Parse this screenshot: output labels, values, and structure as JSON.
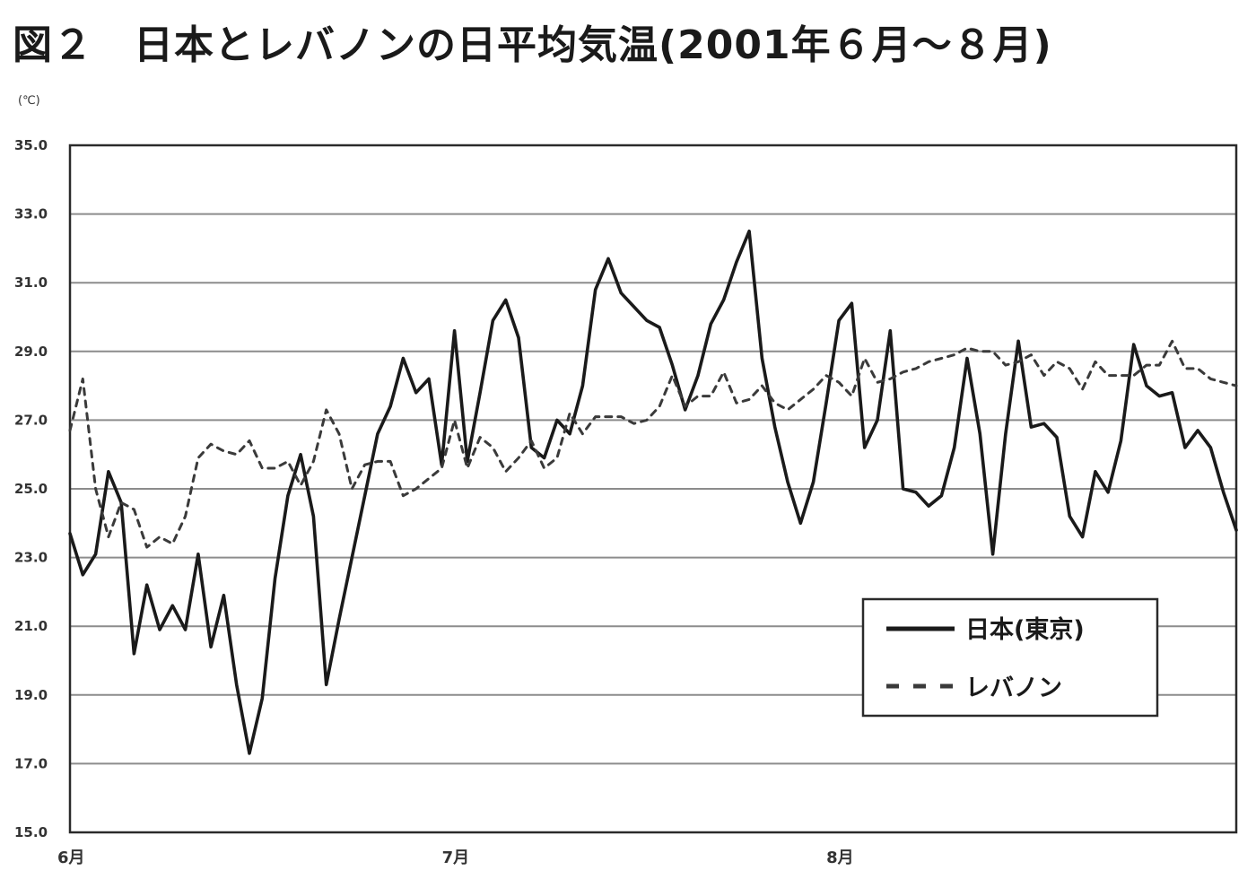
{
  "title": "図２　日本とレバノンの日平均気温(2001年６月～８月)",
  "chart_data": {
    "type": "line",
    "title": "図２　日本とレバノンの日平均気温(2001年６月～８月)",
    "ylabel": "(℃)",
    "xlabel": "",
    "ylim": [
      15.0,
      35.0
    ],
    "xlim": [
      1,
      92
    ],
    "yticks": [
      "15.0",
      "17.0",
      "19.0",
      "21.0",
      "23.0",
      "25.0",
      "27.0",
      "29.0",
      "31.0",
      "33.0",
      "35.0"
    ],
    "x_tick_labels": [
      {
        "x": 1,
        "label": "6月"
      },
      {
        "x": 31,
        "label": "7月"
      },
      {
        "x": 61,
        "label": "8月"
      }
    ],
    "grid": "horizontal",
    "legend_position": "bottom-right",
    "series": [
      {
        "name": "日本(東京)",
        "style": "solid",
        "color": "#1a1a1a",
        "values": [
          23.7,
          22.5,
          23.1,
          25.5,
          24.6,
          20.2,
          22.2,
          20.9,
          21.6,
          20.9,
          23.1,
          20.4,
          21.9,
          19.3,
          17.3,
          18.9,
          22.4,
          24.8,
          26.0,
          24.2,
          19.3,
          21.2,
          23.0,
          24.8,
          26.6,
          27.4,
          28.8,
          27.8,
          28.2,
          25.7,
          29.6,
          25.8,
          27.8,
          29.9,
          30.5,
          29.4,
          26.2,
          25.9,
          27.0,
          26.6,
          28.0,
          30.8,
          31.7,
          30.7,
          30.3,
          29.9,
          29.7,
          28.6,
          27.3,
          28.3,
          29.8,
          30.5,
          31.6,
          32.5,
          28.8,
          26.8,
          25.2,
          24.0,
          25.2,
          27.5,
          29.9,
          30.4,
          26.2,
          27.0,
          29.6,
          25.0,
          24.9,
          24.5,
          24.8,
          26.2,
          28.8,
          26.6,
          23.1,
          26.6,
          29.3,
          26.8,
          26.9,
          26.5,
          24.2,
          23.6,
          25.5,
          24.9,
          26.4,
          29.2,
          28.0,
          27.7,
          27.8,
          26.2,
          26.7,
          26.2,
          24.9,
          23.8
        ]
      },
      {
        "name": "レバノン",
        "style": "dashed",
        "color": "#3a3a3a",
        "values": [
          26.7,
          28.2,
          25.0,
          23.6,
          24.6,
          24.4,
          23.3,
          23.6,
          23.4,
          24.2,
          25.9,
          26.3,
          26.1,
          26.0,
          26.4,
          25.6,
          25.6,
          25.8,
          25.1,
          25.8,
          27.3,
          26.6,
          25.0,
          25.7,
          25.8,
          25.8,
          24.8,
          25.0,
          25.3,
          25.6,
          27.0,
          25.6,
          26.5,
          26.2,
          25.5,
          25.9,
          26.4,
          25.6,
          25.9,
          27.2,
          26.6,
          27.1,
          27.1,
          27.1,
          26.9,
          27.0,
          27.4,
          28.3,
          27.4,
          27.7,
          27.7,
          28.4,
          27.5,
          27.6,
          28.0,
          27.5,
          27.3,
          27.6,
          27.9,
          28.3,
          28.1,
          27.7,
          28.8,
          28.1,
          28.2,
          28.4,
          28.5,
          28.7,
          28.8,
          28.9,
          29.1,
          29.0,
          29.0,
          28.6,
          28.7,
          28.9,
          28.3,
          28.7,
          28.5,
          27.9,
          28.7,
          28.3,
          28.3,
          28.3,
          28.6,
          28.6,
          29.3,
          28.5,
          28.5,
          28.2,
          28.1,
          28.0
        ]
      }
    ]
  }
}
